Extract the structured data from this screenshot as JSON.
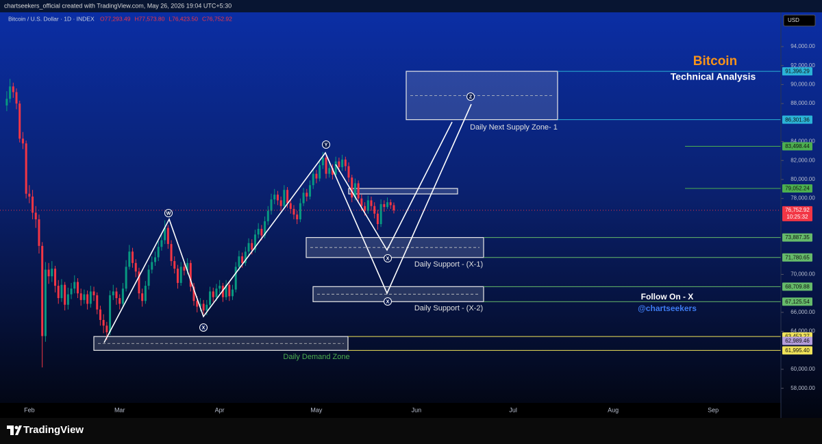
{
  "chart_data": {
    "type": "candlestick",
    "watermark": "chartseekers_official created with TradingView.com, May 26, 2026 19:04 UTC+5:30",
    "symbol": "Bitcoin / U.S. Dollar · 1D · INDEX",
    "ohlc_header": [
      "O77,293.49",
      "H77,573.80",
      "L76,423.50",
      "C76,752.92"
    ],
    "currency": "USD",
    "title": "Bitcoin",
    "subtitle": "Technical Analysis",
    "up_color": "#089981",
    "down_color": "#f23645",
    "open": [
      87800,
      88500,
      89800,
      89200,
      88000,
      84300,
      83800,
      78500,
      78200,
      76500,
      75800,
      73000,
      63500,
      70500,
      69800,
      70600,
      68800,
      67500,
      68900,
      66800,
      67900,
      68500,
      69200,
      68000,
      67300,
      67900,
      66900,
      68200,
      67800,
      66300,
      65200,
      64600,
      63900,
      67800,
      68200,
      67500,
      66900,
      68500,
      70800,
      72400,
      71200,
      70300,
      68000,
      67200,
      68800,
      70500,
      71300,
      71800,
      72900,
      73600,
      74900,
      73200,
      71400,
      70600,
      69100,
      70800,
      70400,
      71200,
      68700,
      67200,
      66600,
      66900,
      66200,
      66800,
      68200,
      67600,
      68500,
      68800,
      67600,
      68900,
      67700,
      68400,
      70800,
      71900,
      71200,
      72400,
      73300,
      72600,
      74200,
      74800,
      74100,
      75600,
      76700,
      77900,
      78400,
      77800,
      77200,
      78900,
      77500,
      76900,
      76300,
      75800,
      77500,
      78600,
      78200,
      79400,
      80600,
      80100,
      81500,
      82300,
      80600,
      81200,
      80500,
      81900,
      81300,
      82100,
      81400,
      80200,
      78100,
      79600,
      78000,
      77200,
      76700,
      77800,
      77200,
      76400,
      75300,
      77400,
      77100,
      77600,
      77293.49
    ],
    "high": [
      89300,
      90600,
      90200,
      89600,
      88300,
      85000,
      84100,
      79400,
      78900,
      77200,
      76300,
      73400,
      71300,
      71200,
      71400,
      70900,
      69400,
      69500,
      69200,
      68600,
      69100,
      69900,
      69600,
      68500,
      68400,
      68300,
      68800,
      68700,
      68100,
      66700,
      65800,
      65000,
      68300,
      68900,
      68600,
      67900,
      69100,
      71500,
      73100,
      72800,
      71600,
      70700,
      68500,
      69300,
      71000,
      71900,
      72400,
      73500,
      74200,
      75700,
      75200,
      73600,
      71900,
      71000,
      71300,
      71300,
      71700,
      71500,
      69100,
      67700,
      67500,
      67300,
      67300,
      68700,
      68600,
      69000,
      69400,
      69100,
      69400,
      69200,
      68900,
      71300,
      72500,
      72300,
      72900,
      73800,
      73700,
      74700,
      75400,
      75200,
      76100,
      77200,
      78500,
      79000,
      78800,
      78200,
      79400,
      79200,
      77900,
      77300,
      76700,
      78000,
      79100,
      79000,
      79900,
      81100,
      81000,
      82000,
      82900,
      82600,
      81800,
      81600,
      82400,
      82300,
      82600,
      82400,
      81800,
      80500,
      80100,
      79900,
      78400,
      77600,
      78300,
      78200,
      77600,
      76800,
      77900,
      77800,
      78100,
      77900,
      77573.8
    ],
    "low": [
      87200,
      88100,
      88600,
      87400,
      83900,
      83200,
      78000,
      77500,
      75800,
      74900,
      72200,
      60200,
      62900,
      69000,
      69200,
      68100,
      66900,
      67100,
      66200,
      66300,
      67400,
      68000,
      67500,
      66700,
      66900,
      66300,
      66500,
      67200,
      65800,
      64600,
      63800,
      63100,
      63600,
      67300,
      66800,
      66300,
      66500,
      68200,
      70500,
      70700,
      69700,
      67400,
      66600,
      66900,
      68400,
      70100,
      70900,
      71400,
      72500,
      73200,
      72700,
      70900,
      70100,
      68500,
      68800,
      69900,
      70000,
      68200,
      66700,
      66000,
      66100,
      65800,
      65700,
      66400,
      67100,
      67200,
      68000,
      67100,
      67300,
      67200,
      67300,
      68100,
      70400,
      70700,
      70900,
      72000,
      72100,
      72300,
      73800,
      73600,
      73800,
      75200,
      76300,
      77400,
      77300,
      76700,
      76900,
      77000,
      76400,
      75800,
      75300,
      75500,
      77200,
      77700,
      77900,
      79000,
      79600,
      79800,
      81100,
      80100,
      80200,
      80000,
      80200,
      80800,
      80900,
      80900,
      79700,
      77600,
      77800,
      77500,
      76700,
      76200,
      76400,
      76700,
      75900,
      74700,
      75000,
      76600,
      76900,
      76900,
      76423.5
    ],
    "close": [
      88500,
      89800,
      89200,
      88000,
      84300,
      83800,
      78500,
      78200,
      76500,
      75800,
      73000,
      63500,
      70500,
      69800,
      70600,
      68800,
      67500,
      68900,
      66800,
      67900,
      68500,
      69200,
      68000,
      67300,
      67900,
      66900,
      68200,
      67800,
      66300,
      65200,
      64600,
      63900,
      67800,
      68200,
      67500,
      66900,
      68500,
      70800,
      72400,
      71200,
      70300,
      68000,
      67200,
      68800,
      70500,
      71300,
      71800,
      72900,
      73600,
      74900,
      73200,
      71400,
      70600,
      69100,
      70800,
      70400,
      71200,
      68700,
      67200,
      66600,
      66900,
      66200,
      66800,
      68200,
      67600,
      68500,
      68800,
      67600,
      68900,
      67700,
      68400,
      70800,
      71900,
      71200,
      72400,
      73300,
      72600,
      74200,
      74800,
      74100,
      75600,
      76700,
      77900,
      78400,
      77800,
      77200,
      78900,
      77500,
      76900,
      76300,
      75800,
      77500,
      78600,
      78200,
      79400,
      80600,
      80100,
      81500,
      82300,
      80600,
      81200,
      80500,
      81900,
      81300,
      82100,
      81400,
      80200,
      78100,
      79600,
      78000,
      77200,
      76700,
      77800,
      77200,
      76400,
      75300,
      77400,
      77100,
      77600,
      77293.49,
      76752.92
    ],
    "last_price_label": "76,752.92",
    "countdown": "10:25:32",
    "xlim": [
      -2.1,
      240
    ],
    "ylim": [
      56460,
      98910
    ],
    "xticks": [
      {
        "value": 7,
        "label": "Feb"
      },
      {
        "value": 35,
        "label": "Mar"
      },
      {
        "value": 66,
        "label": "Apr"
      },
      {
        "value": 96,
        "label": "May"
      },
      {
        "value": 127,
        "label": "Jun"
      },
      {
        "value": 157,
        "label": "Jul"
      },
      {
        "value": 188,
        "label": "Aug"
      },
      {
        "value": 219,
        "label": "Sep"
      }
    ],
    "yticks": [
      {
        "value": 94000,
        "label": "94,000.00"
      },
      {
        "value": 92000,
        "label": "92,000.00"
      },
      {
        "value": 90000,
        "label": "90,000.00"
      },
      {
        "value": 88000,
        "label": "88,000.00"
      },
      {
        "value": 84000,
        "label": "84,000.00"
      },
      {
        "value": 82000,
        "label": "82,000.00"
      },
      {
        "value": 80000,
        "label": "80,000.00"
      },
      {
        "value": 78000,
        "label": "78,000.00"
      },
      {
        "value": 70000,
        "label": "70,000.00"
      },
      {
        "value": 66000,
        "label": "66,000.00"
      },
      {
        "value": 64000,
        "label": "64,000.00"
      },
      {
        "value": 60000,
        "label": "60,000.00"
      },
      {
        "value": 58000,
        "label": "58,000.00"
      }
    ],
    "levels": [
      {
        "value": 91396.29,
        "label": "91,396.29",
        "color": "#2bb3d6"
      },
      {
        "value": 86301.36,
        "label": "86,301.36",
        "color": "#2bb3d6"
      },
      {
        "value": 83498.44,
        "label": "83,498.44",
        "color": "#4caf50"
      },
      {
        "value": 79052.24,
        "label": "79,052.24",
        "color": "#4caf50"
      },
      {
        "value": 73887.35,
        "label": "73,887.35",
        "color": "#66bb6a"
      },
      {
        "value": 71780.65,
        "label": "71,780.65",
        "color": "#66bb6a"
      },
      {
        "value": 68709.88,
        "label": "68,709.88",
        "color": "#66bb6a"
      },
      {
        "value": 67125.54,
        "label": "67,125.54",
        "color": "#66bb6a"
      },
      {
        "value": 63453.27,
        "label": "63,453.27",
        "color": "#f0e35a"
      },
      {
        "value": 62989.46,
        "label": "62,989.46",
        "color": "#b39ddb"
      },
      {
        "value": 61995.4,
        "label": "61,995.40",
        "color": "#f0e35a"
      }
    ],
    "annotations": {
      "supply": "Daily Next Supply Zone- 1",
      "support1": "Daily Support  - (X-1)",
      "support2": "Daily Support  - (X-2)",
      "demand": "Daily Demand Zone",
      "follow": "Follow On - X",
      "handle": "@chartseekers"
    },
    "wave_labels": [
      "W",
      "X",
      "Y",
      "Z",
      "X",
      "X"
    ],
    "brand": "TradingView"
  }
}
